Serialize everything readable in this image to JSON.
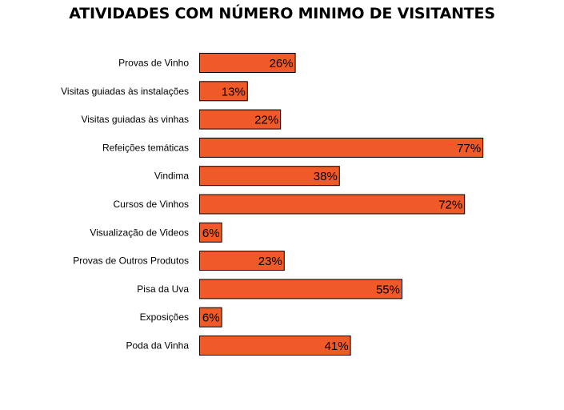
{
  "chart_data": {
    "type": "bar",
    "orientation": "horizontal",
    "title": "ATIVIDADES COM NÚMERO MINIMO DE VISITANTES",
    "xlabel": "",
    "ylabel": "",
    "xlim": [
      0,
      100
    ],
    "grid": false,
    "legend": "none",
    "value_format": "percent",
    "bar_color": "#F05A28",
    "bar_edge_color": "#000000",
    "categories": [
      "Provas de Vinho",
      "Visitas guiadas às instalações",
      "Visitas guiadas às vinhas",
      "Refeições temáticas",
      "Vindima",
      "Cursos de Vinhos",
      "Visualização  de Videos",
      "Provas de Outros Produtos",
      "Pisa da Uva",
      "Exposições",
      "Poda da Vinha"
    ],
    "values": [
      26,
      13,
      22,
      77,
      38,
      72,
      6,
      23,
      55,
      6,
      41
    ],
    "data_labels": [
      "26%",
      "13%",
      "22%",
      "77%",
      "38%",
      "72%",
      "6%",
      "23%",
      "55%",
      "6%",
      "41%"
    ]
  }
}
